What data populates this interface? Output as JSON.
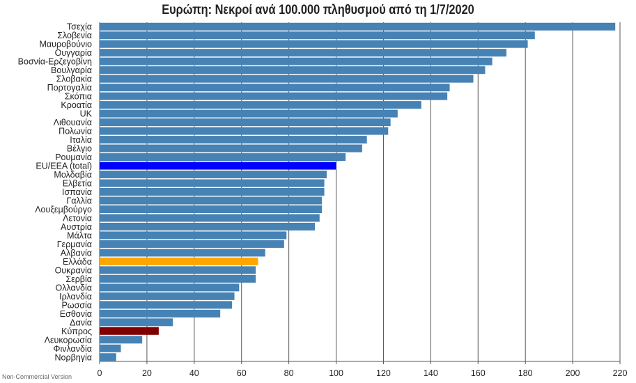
{
  "chart_data": {
    "type": "bar",
    "orientation": "horizontal",
    "title": "Ευρώπη: Νεκροί ανά 100.000 πληθυσμού από τη 1/7/2020",
    "xlabel": "",
    "ylabel": "",
    "xlim": [
      0,
      220
    ],
    "xticks": [
      0,
      20,
      40,
      60,
      80,
      100,
      120,
      140,
      160,
      180,
      200,
      220
    ],
    "grid": true,
    "categories": [
      "Τσεχία",
      "Σλοβενία",
      "Μαυροβούνιο",
      "Ουγγαρία",
      "Βοσνία-Ερζεγοβίνη",
      "Βουλγαρία",
      "Σλοβακία",
      "Πορτογαλία",
      "Σκόπια",
      "Κροατία",
      "UK",
      "Λιθουανία",
      "Πολωνία",
      "Ιταλία",
      "Βέλγιο",
      "Ρουμανία",
      "EU/EEA (total)",
      "Μολδαβία",
      "Ελβετία",
      "Ισπανία",
      "Γαλλία",
      "Λουξεμβούργο",
      "Λετονία",
      "Αυστρία",
      "Μάλτα",
      "Γερμανία",
      "Αλβανία",
      "Ελλάδα",
      "Ουκρανία",
      "Σερβία",
      "Ολλανδία",
      "Ιρλανδία",
      "Ρωσσία",
      "Εσθονία",
      "Δανία",
      "Κύπρος",
      "Λευκορωσία",
      "Φινλανδία",
      "Νορβηγία"
    ],
    "values": [
      218,
      184,
      181,
      172,
      166,
      163,
      158,
      148,
      147,
      136,
      126,
      123,
      122,
      113,
      111,
      104,
      100,
      96,
      95,
      95,
      94,
      94,
      93,
      91,
      79,
      78,
      70,
      67,
      66,
      66,
      59,
      57,
      56,
      51,
      31,
      25,
      18,
      9,
      7
    ],
    "bar_colors": [
      "#4682b4",
      "#4682b4",
      "#4682b4",
      "#4682b4",
      "#4682b4",
      "#4682b4",
      "#4682b4",
      "#4682b4",
      "#4682b4",
      "#4682b4",
      "#4682b4",
      "#4682b4",
      "#4682b4",
      "#4682b4",
      "#4682b4",
      "#4682b4",
      "#0000ff",
      "#4682b4",
      "#4682b4",
      "#4682b4",
      "#4682b4",
      "#4682b4",
      "#4682b4",
      "#4682b4",
      "#4682b4",
      "#4682b4",
      "#4682b4",
      "#ffa500",
      "#4682b4",
      "#4682b4",
      "#4682b4",
      "#4682b4",
      "#4682b4",
      "#4682b4",
      "#4682b4",
      "#800000",
      "#4682b4",
      "#4682b4",
      "#4682b4"
    ]
  },
  "footer_note": "Non-Commercial Version"
}
